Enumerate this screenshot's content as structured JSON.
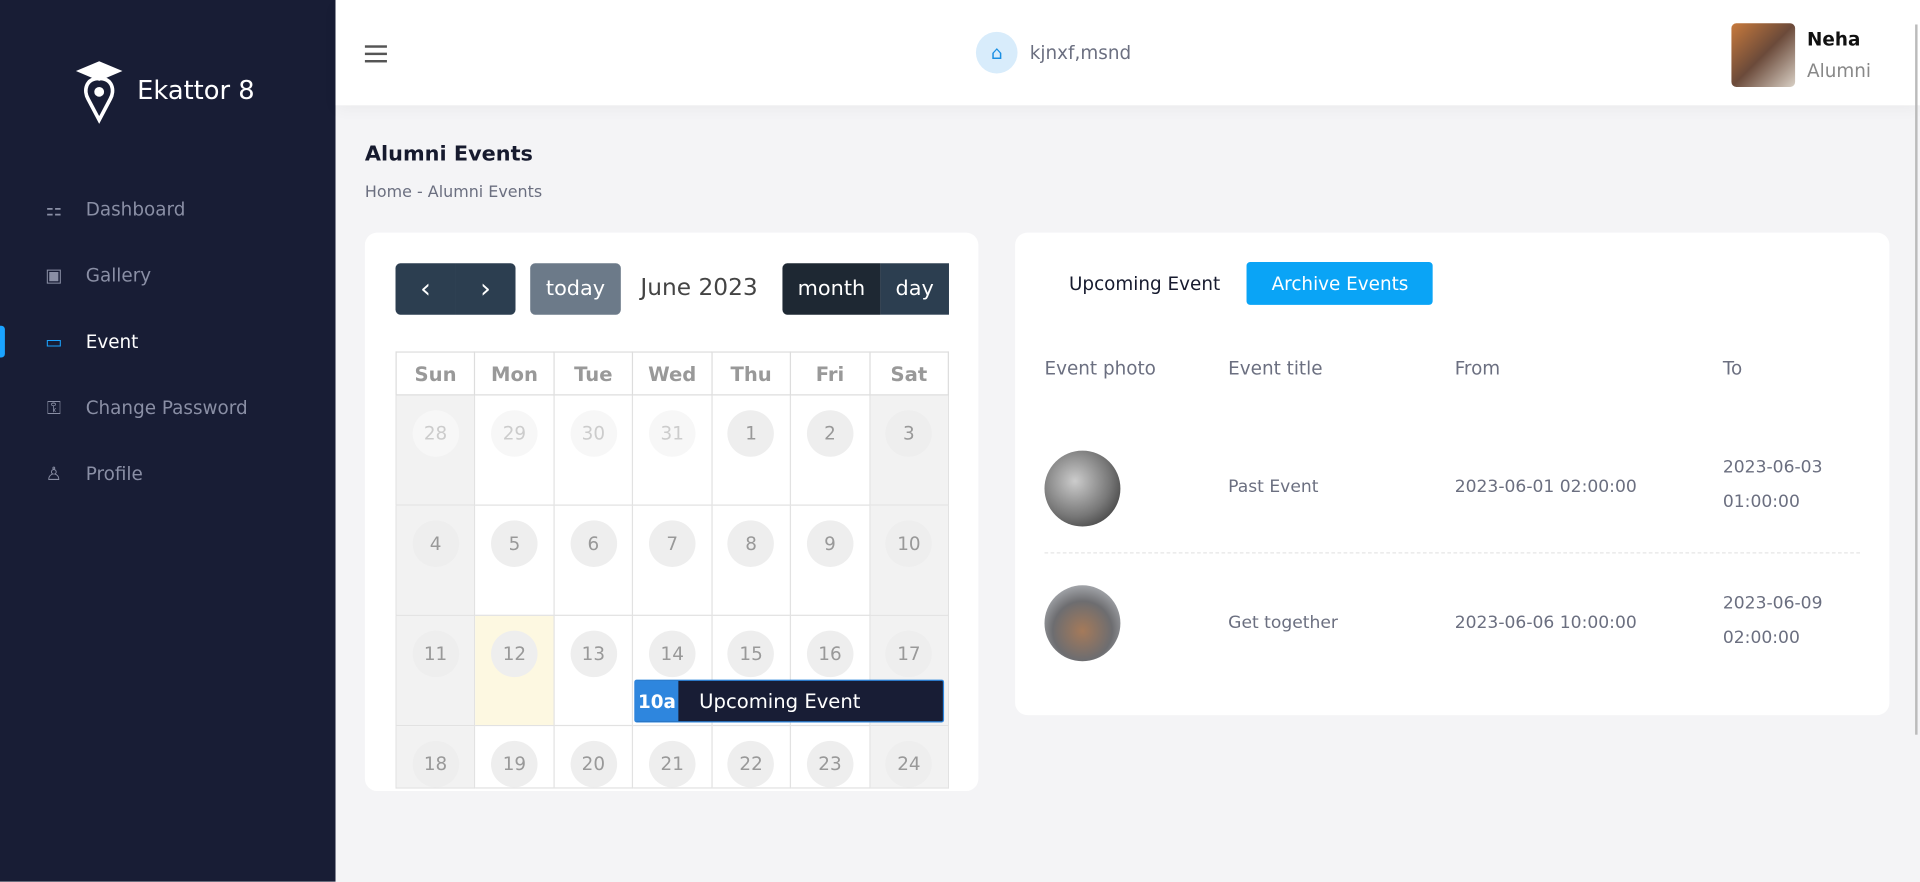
{
  "brand": {
    "name": "Ekattor 8"
  },
  "sidebar": {
    "items": [
      {
        "label": "Dashboard",
        "icon": "grid-icon"
      },
      {
        "label": "Gallery",
        "icon": "image-icon"
      },
      {
        "label": "Event",
        "icon": "calendar-icon",
        "active": true
      },
      {
        "label": "Change Password",
        "icon": "key-icon"
      },
      {
        "label": "Profile",
        "icon": "user-icon"
      }
    ]
  },
  "header": {
    "school": "kjnxf,msnd",
    "user": {
      "name": "Neha",
      "role": "Alumni"
    }
  },
  "page": {
    "title": "Alumni Events",
    "breadcrumb": [
      "Home",
      "-",
      "Alumni Events"
    ]
  },
  "calendar": {
    "title": "June 2023",
    "today_label": "today",
    "month_label": "month",
    "day_label": "day",
    "weekdays": [
      "Sun",
      "Mon",
      "Tue",
      "Wed",
      "Thu",
      "Fri",
      "Sat"
    ],
    "weeks": [
      [
        "28",
        "29",
        "30",
        "31",
        "1",
        "2",
        "3"
      ],
      [
        "4",
        "5",
        "6",
        "7",
        "8",
        "9",
        "10"
      ],
      [
        "11",
        "12",
        "13",
        "14",
        "15",
        "16",
        "17"
      ],
      [
        "18",
        "19",
        "20",
        "21",
        "22",
        "23",
        "24"
      ]
    ],
    "event": {
      "time": "10a",
      "title": "Upcoming Event"
    }
  },
  "events": {
    "tabs": [
      "Upcoming Event",
      "Archive Events"
    ],
    "columns": [
      "Event photo",
      "Event title",
      "From",
      "To"
    ],
    "rows": [
      {
        "title": "Past Event",
        "from": "2023-06-01 02:00:00",
        "to_date": "2023-06-03",
        "to_time": "01:00:00"
      },
      {
        "title": "Get together",
        "from": "2023-06-06 10:00:00",
        "to_date": "2023-06-09",
        "to_time": "02:00:00"
      }
    ]
  }
}
